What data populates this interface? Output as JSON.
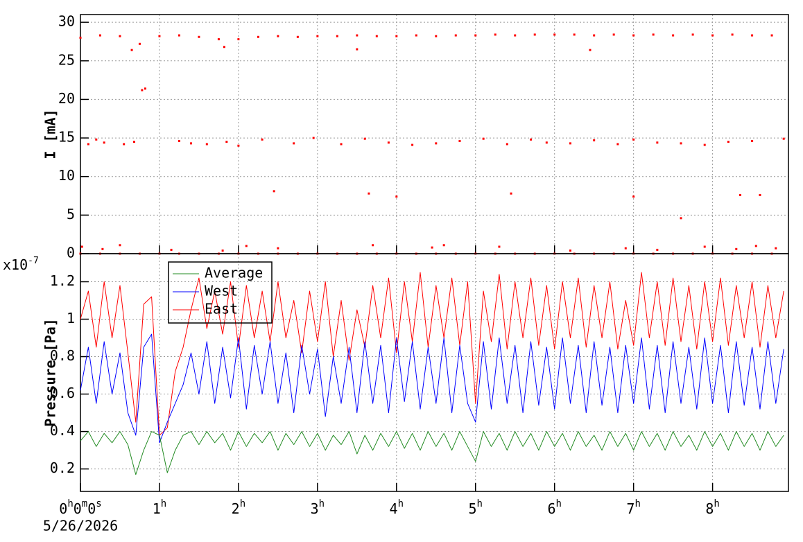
{
  "chart_data": [
    {
      "type": "scatter",
      "y_label": "I [mA]",
      "xlim": [
        0,
        8.96
      ],
      "xticks": [
        0,
        1,
        2,
        3,
        4,
        5,
        6,
        7,
        8
      ],
      "ylim": [
        0,
        31
      ],
      "yticks": [
        0,
        5,
        10,
        15,
        20,
        25,
        30
      ],
      "grid": true,
      "series": [
        {
          "color": "#ff0000",
          "x": [
            0,
            0.25,
            0.5,
            0.75,
            1,
            1.25,
            1.5,
            1.75,
            2,
            2.25,
            2.5,
            2.75,
            3,
            3.25,
            3.5,
            3.75,
            4,
            4.25,
            4.5,
            4.75,
            5,
            5.25,
            5.5,
            5.75,
            6,
            6.25,
            6.5,
            6.75,
            7,
            7.25,
            7.5,
            7.75,
            8,
            8.25,
            8.5,
            8.75,
            0,
            0.25,
            0.5,
            0.75,
            1,
            1.25,
            1.5,
            1.75,
            2,
            2.25,
            2.5,
            2.75,
            3,
            3.25,
            3.5,
            3.75,
            4,
            4.25,
            4.5,
            4.75,
            5,
            5.25,
            5.5,
            5.75,
            6,
            6.25,
            6.5,
            6.75,
            7,
            7.25,
            7.5,
            7.75,
            8,
            8.25,
            8.5,
            8.75,
            0.1,
            0.2,
            0.3,
            0.55,
            0.68,
            1.25,
            1.4,
            1.6,
            1.85,
            2.0,
            2.3,
            2.7,
            2.95,
            3.3,
            3.6,
            3.9,
            4.2,
            4.5,
            4.8,
            5.1,
            5.4,
            5.7,
            5.9,
            6.2,
            6.5,
            6.8,
            7.0,
            7.3,
            7.6,
            7.9,
            8.2,
            8.5,
            8.9,
            0.02,
            0.28,
            0.5,
            1.15,
            1.8,
            2.1,
            2.5,
            3.7,
            4.45,
            4.6,
            5.3,
            6.2,
            6.9,
            7.3,
            7.9,
            8.3,
            8.55,
            8.8,
            0.65,
            0.78,
            0.82,
            2.45,
            3.65,
            4.0,
            5.45,
            7.0,
            7.6,
            8.35,
            8.6,
            3.5,
            6.45,
            1.82
          ],
          "values": [
            28.0,
            28.3,
            28.2,
            27.2,
            28.2,
            28.3,
            28.1,
            27.8,
            27.8,
            28.1,
            28.2,
            28.1,
            28.2,
            28.2,
            28.3,
            28.2,
            28.2,
            28.3,
            28.2,
            28.3,
            28.3,
            28.4,
            28.3,
            28.4,
            28.4,
            28.4,
            28.3,
            28.4,
            28.3,
            28.4,
            28.3,
            28.4,
            28.3,
            28.4,
            28.3,
            28.3,
            0,
            0,
            0,
            0,
            0,
            0,
            0,
            0,
            0,
            0,
            0,
            0,
            0,
            0,
            0,
            0,
            0,
            0,
            0,
            0,
            0,
            0,
            0,
            0,
            0,
            0,
            0,
            0,
            0,
            0,
            0,
            0,
            0,
            0,
            0,
            0,
            14.2,
            14.8,
            14.4,
            14.2,
            14.5,
            14.6,
            14.3,
            14.2,
            14.5,
            14.0,
            14.8,
            14.3,
            15.0,
            14.2,
            14.9,
            14.4,
            14.1,
            14.3,
            14.6,
            14.9,
            14.2,
            14.8,
            14.4,
            14.3,
            14.7,
            14.2,
            14.8,
            14.4,
            14.3,
            14.1,
            14.5,
            14.6,
            14.9,
            0.9,
            0.6,
            1.1,
            0.5,
            0.4,
            1.0,
            0.7,
            1.1,
            0.8,
            1.1,
            0.9,
            0.4,
            0.7,
            0.5,
            0.9,
            0.6,
            1.0,
            0.7,
            26.4,
            21.2,
            21.4,
            8.1,
            7.8,
            7.4,
            7.8,
            7.4,
            4.6,
            7.6,
            7.6,
            26.5,
            26.4,
            26.8
          ]
        }
      ]
    },
    {
      "type": "line",
      "y_label": "Pressure [Pa]",
      "y_multiplier": {
        "base": "x10",
        "exponent": "-7"
      },
      "xlim": [
        0,
        8.96
      ],
      "xticks": [
        {
          "value": 0,
          "label": "0h0m0s"
        },
        {
          "value": 1,
          "label": "1h"
        },
        {
          "value": 2,
          "label": "2h"
        },
        {
          "value": 3,
          "label": "3h"
        },
        {
          "value": 4,
          "label": "4h"
        },
        {
          "value": 5,
          "label": "5h"
        },
        {
          "value": 6,
          "label": "6h"
        },
        {
          "value": 7,
          "label": "7h"
        },
        {
          "value": 8,
          "label": "8h"
        }
      ],
      "x_sublabel": "5/26/2026",
      "ylim": [
        0.08,
        1.35
      ],
      "yticks": [
        0.2,
        0.4,
        0.6,
        0.8,
        1,
        1.2
      ],
      "grid": true,
      "x": [
        0,
        0.1,
        0.2,
        0.3,
        0.4,
        0.5,
        0.6,
        0.7,
        0.8,
        0.9,
        1,
        1.1,
        1.2,
        1.3,
        1.4,
        1.5,
        1.6,
        1.7,
        1.8,
        1.9,
        2,
        2.1,
        2.2,
        2.3,
        2.4,
        2.5,
        2.6,
        2.7,
        2.8,
        2.9,
        3,
        3.1,
        3.2,
        3.3,
        3.4,
        3.5,
        3.6,
        3.7,
        3.8,
        3.9,
        4,
        4.1,
        4.2,
        4.3,
        4.4,
        4.5,
        4.6,
        4.7,
        4.8,
        4.9,
        5,
        5.1,
        5.2,
        5.3,
        5.4,
        5.5,
        5.6,
        5.7,
        5.8,
        5.9,
        6,
        6.1,
        6.2,
        6.3,
        6.4,
        6.5,
        6.6,
        6.7,
        6.8,
        6.9,
        7,
        7.1,
        7.2,
        7.3,
        7.4,
        7.5,
        7.6,
        7.7,
        7.8,
        7.9,
        8,
        8.1,
        8.2,
        8.3,
        8.4,
        8.5,
        8.6,
        8.7,
        8.8,
        8.9
      ],
      "series": [
        {
          "name": "Average",
          "color": "#228b22",
          "values": [
            0.35,
            0.4,
            0.32,
            0.39,
            0.34,
            0.4,
            0.33,
            0.17,
            0.3,
            0.4,
            0.38,
            0.18,
            0.3,
            0.38,
            0.4,
            0.33,
            0.4,
            0.34,
            0.39,
            0.3,
            0.4,
            0.32,
            0.39,
            0.34,
            0.4,
            0.3,
            0.39,
            0.33,
            0.4,
            0.32,
            0.39,
            0.3,
            0.38,
            0.33,
            0.4,
            0.28,
            0.38,
            0.3,
            0.39,
            0.32,
            0.4,
            0.31,
            0.39,
            0.3,
            0.4,
            0.32,
            0.39,
            0.3,
            0.4,
            0.32,
            0.24,
            0.4,
            0.32,
            0.39,
            0.3,
            0.4,
            0.32,
            0.39,
            0.3,
            0.4,
            0.32,
            0.39,
            0.3,
            0.4,
            0.32,
            0.38,
            0.3,
            0.4,
            0.32,
            0.39,
            0.3,
            0.4,
            0.32,
            0.39,
            0.3,
            0.4,
            0.32,
            0.38,
            0.3,
            0.4,
            0.32,
            0.39,
            0.3,
            0.4,
            0.32,
            0.39,
            0.3,
            0.4,
            0.32,
            0.38
          ]
        },
        {
          "name": "West",
          "color": "#0000ff",
          "values": [
            0.62,
            0.85,
            0.55,
            0.88,
            0.6,
            0.82,
            0.5,
            0.38,
            0.85,
            0.92,
            0.34,
            0.45,
            0.55,
            0.65,
            0.82,
            0.6,
            0.88,
            0.55,
            0.85,
            0.58,
            0.9,
            0.52,
            0.86,
            0.6,
            0.88,
            0.55,
            0.82,
            0.5,
            0.86,
            0.6,
            0.84,
            0.48,
            0.8,
            0.55,
            0.85,
            0.5,
            0.88,
            0.55,
            0.86,
            0.5,
            0.9,
            0.56,
            0.88,
            0.52,
            0.85,
            0.55,
            0.9,
            0.5,
            0.86,
            0.55,
            0.45,
            0.88,
            0.52,
            0.9,
            0.55,
            0.86,
            0.5,
            0.88,
            0.54,
            0.85,
            0.52,
            0.9,
            0.55,
            0.86,
            0.5,
            0.88,
            0.54,
            0.85,
            0.5,
            0.86,
            0.55,
            0.9,
            0.52,
            0.86,
            0.5,
            0.88,
            0.55,
            0.85,
            0.52,
            0.9,
            0.55,
            0.86,
            0.5,
            0.88,
            0.54,
            0.85,
            0.52,
            0.88,
            0.55,
            0.84
          ]
        },
        {
          "name": "East",
          "color": "#ff0000",
          "values": [
            1.0,
            1.15,
            0.85,
            1.2,
            0.9,
            1.18,
            0.82,
            0.45,
            1.08,
            1.12,
            0.38,
            0.42,
            0.72,
            0.85,
            1.05,
            1.22,
            0.95,
            1.15,
            0.92,
            1.2,
            0.85,
            1.18,
            0.9,
            1.15,
            0.88,
            1.2,
            0.9,
            1.1,
            0.82,
            1.15,
            0.88,
            1.2,
            0.8,
            1.1,
            0.78,
            1.05,
            0.85,
            1.18,
            0.9,
            1.22,
            0.82,
            1.2,
            0.88,
            1.25,
            0.85,
            1.18,
            0.9,
            1.22,
            0.86,
            1.2,
            0.55,
            1.15,
            0.88,
            1.24,
            0.84,
            1.2,
            0.9,
            1.22,
            0.86,
            1.18,
            0.84,
            1.2,
            0.9,
            1.22,
            0.85,
            1.18,
            0.9,
            1.2,
            0.84,
            1.1,
            0.86,
            1.25,
            0.9,
            1.2,
            0.86,
            1.22,
            0.88,
            1.18,
            0.84,
            1.2,
            0.88,
            1.22,
            0.86,
            1.18,
            0.9,
            1.2,
            0.85,
            1.18,
            0.9,
            1.15
          ]
        }
      ]
    }
  ]
}
